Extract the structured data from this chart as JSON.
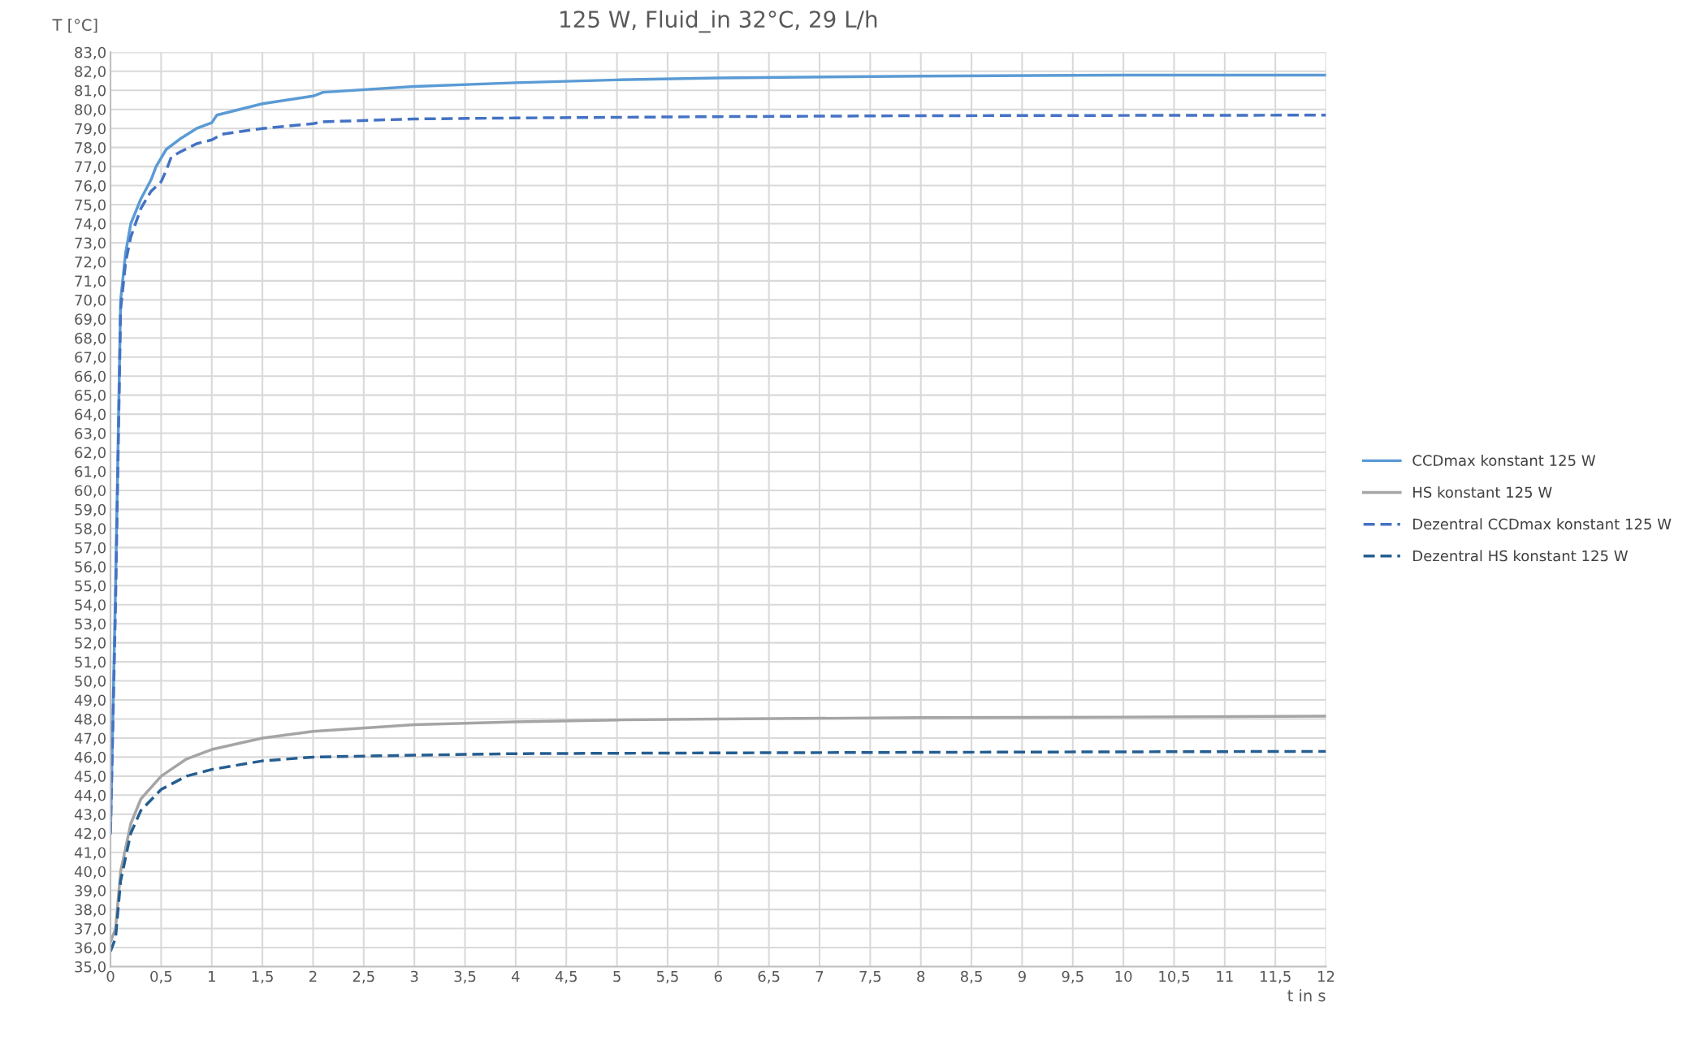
{
  "chart_data": {
    "type": "line",
    "title": "125 W, Fluid_in 32°C, 29 L/h",
    "xlabel": "t in s",
    "ylabel": "T [°C]",
    "xlim": [
      0,
      12
    ],
    "ylim": [
      35,
      83
    ],
    "xticks": [
      0,
      {
        "value": 0.5,
        "label": "0,5"
      },
      1,
      {
        "value": 1.5,
        "label": "1,5"
      },
      2,
      {
        "value": 2.5,
        "label": "2,5"
      },
      3,
      {
        "value": 3.5,
        "label": "3,5"
      },
      4,
      {
        "value": 4.5,
        "label": "4,5"
      },
      5,
      {
        "value": 5.5,
        "label": "5,5"
      },
      6,
      {
        "value": 6.5,
        "label": "6,5"
      },
      7,
      {
        "value": 7.5,
        "label": "7,5"
      },
      8,
      {
        "value": 8.5,
        "label": "8,5"
      },
      9,
      {
        "value": 9.5,
        "label": "9,5"
      },
      10,
      {
        "value": 10.5,
        "label": "10,5"
      },
      11,
      {
        "value": 11.5,
        "label": "11,5"
      },
      12
    ],
    "yticks": [
      {
        "value": 35,
        "label": "35,0"
      },
      {
        "value": 36,
        "label": "36,0"
      },
      {
        "value": 37,
        "label": "37,0"
      },
      {
        "value": 38,
        "label": "38,0"
      },
      {
        "value": 39,
        "label": "39,0"
      },
      {
        "value": 40,
        "label": "40,0"
      },
      {
        "value": 41,
        "label": "41,0"
      },
      {
        "value": 42,
        "label": "42,0"
      },
      {
        "value": 43,
        "label": "43,0"
      },
      {
        "value": 44,
        "label": "44,0"
      },
      {
        "value": 45,
        "label": "45,0"
      },
      {
        "value": 46,
        "label": "46,0"
      },
      {
        "value": 47,
        "label": "47,0"
      },
      {
        "value": 48,
        "label": "48,0"
      },
      {
        "value": 49,
        "label": "49,0"
      },
      {
        "value": 50,
        "label": "50,0"
      },
      {
        "value": 51,
        "label": "51,0"
      },
      {
        "value": 52,
        "label": "52,0"
      },
      {
        "value": 53,
        "label": "53,0"
      },
      {
        "value": 54,
        "label": "54,0"
      },
      {
        "value": 55,
        "label": "55,0"
      },
      {
        "value": 56,
        "label": "56,0"
      },
      {
        "value": 57,
        "label": "57,0"
      },
      {
        "value": 58,
        "label": "58,0"
      },
      {
        "value": 59,
        "label": "59,0"
      },
      {
        "value": 60,
        "label": "60,0"
      },
      {
        "value": 61,
        "label": "61,0"
      },
      {
        "value": 62,
        "label": "62,0"
      },
      {
        "value": 63,
        "label": "63,0"
      },
      {
        "value": 64,
        "label": "64,0"
      },
      {
        "value": 65,
        "label": "65,0"
      },
      {
        "value": 66,
        "label": "66,0"
      },
      {
        "value": 67,
        "label": "67,0"
      },
      {
        "value": 68,
        "label": "68,0"
      },
      {
        "value": 69,
        "label": "69,0"
      },
      {
        "value": 70,
        "label": "70,0"
      },
      {
        "value": 71,
        "label": "71,0"
      },
      {
        "value": 72,
        "label": "72,0"
      },
      {
        "value": 73,
        "label": "73,0"
      },
      {
        "value": 74,
        "label": "74,0"
      },
      {
        "value": 75,
        "label": "75,0"
      },
      {
        "value": 76,
        "label": "76,0"
      },
      {
        "value": 77,
        "label": "77,0"
      },
      {
        "value": 78,
        "label": "78,0"
      },
      {
        "value": 79,
        "label": "79,0"
      },
      {
        "value": 80,
        "label": "80,0"
      },
      {
        "value": 81,
        "label": "81,0"
      },
      {
        "value": 82,
        "label": "82,0"
      },
      {
        "value": 83,
        "label": "83,0"
      }
    ],
    "grid": true,
    "legend": "right",
    "marker": "none",
    "series": [
      {
        "name": "CCDmax konstant 125 W",
        "color": "#5b9bd5",
        "line_style": "solid",
        "x": [
          0,
          0.05,
          0.1,
          0.15,
          0.2,
          0.3,
          0.4,
          0.45,
          0.55,
          0.7,
          0.85,
          1.0,
          1.05,
          1.5,
          2.0,
          2.1,
          3,
          4,
          5,
          6,
          8,
          10,
          12
        ],
        "values": [
          42,
          55,
          70,
          72.5,
          74,
          75.3,
          76.3,
          77,
          77.9,
          78.5,
          79,
          79.3,
          79.7,
          80.3,
          80.7,
          80.9,
          81.2,
          81.4,
          81.55,
          81.65,
          81.75,
          81.8,
          81.8
        ]
      },
      {
        "name": "HS konstant 125 W",
        "color": "#a5a5a5",
        "line_style": "solid",
        "x": [
          0,
          0.05,
          0.1,
          0.2,
          0.3,
          0.5,
          0.75,
          1,
          1.5,
          2,
          3,
          4,
          5,
          6,
          8,
          10,
          12
        ],
        "values": [
          36.3,
          37,
          40,
          42.5,
          43.8,
          45,
          45.9,
          46.4,
          47,
          47.35,
          47.7,
          47.85,
          47.95,
          48.0,
          48.07,
          48.1,
          48.15
        ]
      },
      {
        "name": "Dezentral CCDmax konstant 125 W",
        "color": "#4472c4",
        "line_style": "dashed",
        "x": [
          0,
          0.05,
          0.1,
          0.15,
          0.2,
          0.3,
          0.4,
          0.5,
          0.55,
          0.6,
          0.7,
          0.85,
          1.0,
          1.1,
          1.5,
          2,
          2.1,
          3,
          4,
          6,
          8,
          12
        ],
        "values": [
          42,
          54,
          69.5,
          72,
          73.3,
          74.8,
          75.7,
          76.2,
          76.8,
          77.5,
          77.8,
          78.2,
          78.4,
          78.7,
          79.0,
          79.25,
          79.35,
          79.5,
          79.55,
          79.62,
          79.67,
          79.7
        ]
      },
      {
        "name": "Dezentral HS konstant 125 W",
        "color": "#255e91",
        "line_style": "dashed",
        "x": [
          0,
          0.05,
          0.1,
          0.2,
          0.3,
          0.5,
          0.75,
          1,
          1.5,
          2,
          3,
          4,
          6,
          8,
          12
        ],
        "values": [
          35.8,
          36.5,
          39.5,
          42,
          43.2,
          44.3,
          45,
          45.35,
          45.8,
          46.0,
          46.1,
          46.18,
          46.22,
          46.25,
          46.3
        ]
      }
    ]
  }
}
